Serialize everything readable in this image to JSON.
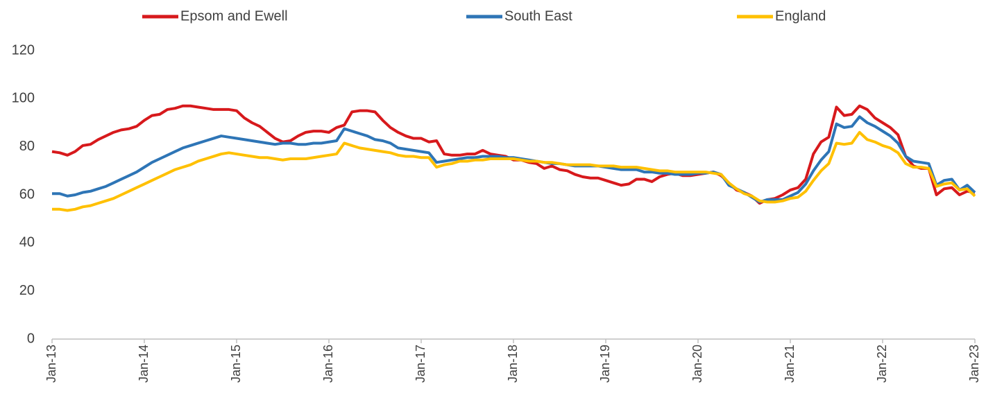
{
  "chart_data": {
    "type": "line",
    "categories": [
      "Jan-13",
      null,
      null,
      null,
      null,
      null,
      null,
      null,
      null,
      null,
      null,
      null,
      "Jan-14",
      null,
      null,
      null,
      null,
      null,
      null,
      null,
      null,
      null,
      null,
      null,
      "Jan-15",
      null,
      null,
      null,
      null,
      null,
      null,
      null,
      null,
      null,
      null,
      null,
      "Jan-16",
      null,
      null,
      null,
      null,
      null,
      null,
      null,
      null,
      null,
      null,
      null,
      "Jan-17",
      null,
      null,
      null,
      null,
      null,
      null,
      null,
      null,
      null,
      null,
      null,
      "Jan-18",
      null,
      null,
      null,
      null,
      null,
      null,
      null,
      null,
      null,
      null,
      null,
      "Jan-19",
      null,
      null,
      null,
      null,
      null,
      null,
      null,
      null,
      null,
      null,
      null,
      "Jan-20",
      null,
      null,
      null,
      null,
      null,
      null,
      null,
      null,
      null,
      null,
      null,
      "Jan-21",
      null,
      null,
      null,
      null,
      null,
      null,
      null,
      null,
      null,
      null,
      null,
      "Jan-22",
      null,
      null,
      null,
      null,
      null,
      null,
      null,
      null,
      null,
      null,
      null,
      "Jan-23"
    ],
    "series": [
      {
        "name": "Epsom and Ewell",
        "color": "#d7191c",
        "values": [
          78,
          77.5,
          76.5,
          78,
          80.5,
          81,
          83,
          84.5,
          86,
          87,
          87.5,
          88.5,
          91,
          93,
          93.5,
          95.5,
          96,
          97,
          97,
          96.5,
          96,
          95.5,
          95.5,
          95.5,
          95,
          92,
          90,
          88.5,
          86,
          83.5,
          82,
          82.5,
          84.5,
          86,
          86.5,
          86.5,
          86,
          88,
          89,
          94.5,
          95,
          95,
          94.5,
          91,
          88,
          86,
          84.5,
          83.5,
          83.5,
          82,
          82.5,
          77,
          76.5,
          76.5,
          77,
          77,
          78.5,
          77,
          76.5,
          76,
          74.5,
          74.5,
          73.5,
          73,
          71,
          72,
          70.5,
          70,
          68.5,
          67.5,
          67,
          67,
          66,
          65,
          64,
          64.5,
          66.5,
          66.5,
          65.5,
          67.5,
          68.5,
          69,
          68,
          68,
          68.5,
          69,
          69.5,
          68,
          65,
          62,
          61,
          59.5,
          56.5,
          58,
          58.5,
          60,
          62,
          63,
          66.5,
          77,
          82,
          84,
          96.5,
          93,
          93.5,
          97,
          95.5,
          92,
          90,
          88,
          85,
          76,
          72,
          71,
          71,
          60,
          62.5,
          63,
          60,
          61.5,
          61
        ]
      },
      {
        "name": "South East",
        "color": "#2e75b6",
        "values": [
          60.5,
          60.5,
          59.5,
          60,
          61,
          61.5,
          62.5,
          63.5,
          65,
          66.5,
          68,
          69.5,
          71.5,
          73.5,
          75,
          76.5,
          78,
          79.5,
          80.5,
          81.5,
          82.5,
          83.5,
          84.5,
          84,
          83.5,
          83,
          82.5,
          82,
          81.5,
          81,
          81.5,
          81.5,
          81,
          81,
          81.5,
          81.5,
          82,
          82.5,
          87.5,
          86.5,
          85.5,
          84.5,
          83,
          82.5,
          81.5,
          79.5,
          79,
          78.5,
          78,
          77.5,
          73.5,
          74,
          74.5,
          75,
          75.5,
          75.5,
          76,
          76,
          76,
          75.5,
          75.5,
          75,
          74.5,
          74,
          73.5,
          73,
          73,
          72.5,
          72,
          72,
          72,
          72,
          71.5,
          71,
          70.5,
          70.5,
          70.5,
          69.5,
          69.5,
          69,
          69,
          68.5,
          68.5,
          68.5,
          69,
          69,
          69.5,
          68.5,
          64,
          62.5,
          61,
          59,
          57,
          58,
          58,
          58,
          59.5,
          61,
          64.5,
          70,
          74.5,
          78,
          89.5,
          88,
          88.5,
          92.5,
          90,
          88.5,
          86.5,
          84.5,
          81.5,
          76,
          74,
          73.5,
          73,
          64,
          66,
          66.5,
          62,
          64,
          61
        ]
      },
      {
        "name": "England",
        "color": "#ffc000",
        "values": [
          54,
          54,
          53.5,
          54,
          55,
          55.5,
          56.5,
          57.5,
          58.5,
          60,
          61.5,
          63,
          64.5,
          66,
          67.5,
          69,
          70.5,
          71.5,
          72.5,
          74,
          75,
          76,
          77,
          77.5,
          77,
          76.5,
          76,
          75.5,
          75.5,
          75,
          74.5,
          75,
          75,
          75,
          75.5,
          76,
          76.5,
          77,
          81.5,
          80.5,
          79.5,
          79,
          78.5,
          78,
          77.5,
          76.5,
          76,
          76,
          75.5,
          75.5,
          71.5,
          72.5,
          73,
          74,
          74,
          74.5,
          74.5,
          75,
          75,
          75,
          75,
          74.5,
          74,
          74,
          73.5,
          73.5,
          73,
          72.5,
          72.5,
          72.5,
          72.5,
          72,
          72,
          72,
          71.5,
          71.5,
          71.5,
          71,
          70.5,
          70,
          70,
          69.5,
          69.5,
          69.5,
          69.5,
          69.5,
          69,
          68.5,
          65,
          62.5,
          60.5,
          59.5,
          57.5,
          57,
          57,
          57.5,
          58.5,
          59,
          61.5,
          66,
          70,
          73,
          81.5,
          81,
          81.5,
          86,
          83,
          82,
          80.5,
          79.5,
          77.5,
          73,
          71.5,
          71.5,
          71,
          63.5,
          64.5,
          65,
          62,
          62.5,
          59.5
        ]
      }
    ],
    "ylim": [
      0,
      120
    ],
    "yticks": [
      0,
      20,
      40,
      60,
      80,
      100,
      120
    ],
    "grid": false,
    "legend": "top"
  }
}
